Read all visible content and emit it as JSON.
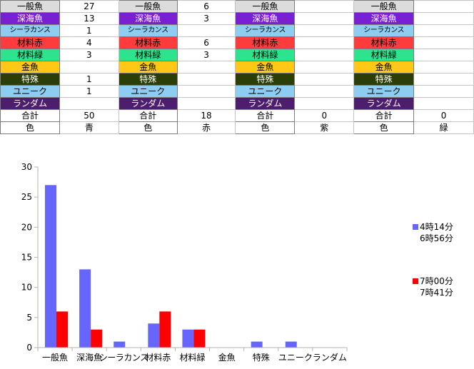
{
  "table": {
    "groups": [
      {
        "rows": [
          {
            "label": "一般魚",
            "value": "27"
          },
          {
            "label": "深海魚",
            "value": "13"
          },
          {
            "label": "シーラカンス",
            "value": "1"
          },
          {
            "label": "材料赤",
            "value": "4"
          },
          {
            "label": "材料緑",
            "value": "3"
          },
          {
            "label": "金魚",
            "value": ""
          },
          {
            "label": "特殊",
            "value": "1"
          },
          {
            "label": "ユニーク",
            "value": "1"
          },
          {
            "label": "ランダム",
            "value": ""
          },
          {
            "label": "合計",
            "value": "50"
          },
          {
            "label": "色",
            "value": "青"
          }
        ]
      },
      {
        "rows": [
          {
            "label": "一般魚",
            "value": "6"
          },
          {
            "label": "深海魚",
            "value": "3"
          },
          {
            "label": "シーラカンス",
            "value": ""
          },
          {
            "label": "材料赤",
            "value": "6"
          },
          {
            "label": "材料緑",
            "value": "3"
          },
          {
            "label": "金魚",
            "value": ""
          },
          {
            "label": "特殊",
            "value": ""
          },
          {
            "label": "ユニーク",
            "value": ""
          },
          {
            "label": "ランダム",
            "value": ""
          },
          {
            "label": "合計",
            "value": "18"
          },
          {
            "label": "色",
            "value": "赤"
          }
        ]
      },
      {
        "rows": [
          {
            "label": "一般魚",
            "value": ""
          },
          {
            "label": "深海魚",
            "value": ""
          },
          {
            "label": "シーラカンス",
            "value": ""
          },
          {
            "label": "材料赤",
            "value": ""
          },
          {
            "label": "材料緑",
            "value": ""
          },
          {
            "label": "金魚",
            "value": ""
          },
          {
            "label": "特殊",
            "value": ""
          },
          {
            "label": "ユニーク",
            "value": ""
          },
          {
            "label": "ランダム",
            "value": ""
          },
          {
            "label": "合計",
            "value": "0"
          },
          {
            "label": "色",
            "value": "紫"
          }
        ]
      },
      {
        "rows": [
          {
            "label": "一般魚",
            "value": ""
          },
          {
            "label": "深海魚",
            "value": ""
          },
          {
            "label": "シーラカンス",
            "value": ""
          },
          {
            "label": "材料赤",
            "value": ""
          },
          {
            "label": "材料緑",
            "value": ""
          },
          {
            "label": "金魚",
            "value": ""
          },
          {
            "label": "特殊",
            "value": ""
          },
          {
            "label": "ユニーク",
            "value": ""
          },
          {
            "label": "ランダム",
            "value": ""
          },
          {
            "label": "合計",
            "value": "0"
          },
          {
            "label": "色",
            "value": "緑"
          }
        ]
      }
    ],
    "row_colors": [
      {
        "bg": "#dcdcdc",
        "fg": "#000000"
      },
      {
        "bg": "#7a1fd1",
        "fg": "#ffffff"
      },
      {
        "bg": "#8ecdf2",
        "fg": "#000000"
      },
      {
        "bg": "#ff3b3b",
        "fg": "#000000"
      },
      {
        "bg": "#2ee38d",
        "fg": "#000000"
      },
      {
        "bg": "#ffc816",
        "fg": "#000000"
      },
      {
        "bg": "#2b3e06",
        "fg": "#ffffff"
      },
      {
        "bg": "#8ecdf2",
        "fg": "#000000"
      },
      {
        "bg": "#4d1e6e",
        "fg": "#ffffff"
      },
      {
        "bg": "#ffffff",
        "fg": "#000000"
      },
      {
        "bg": "#ffffff",
        "fg": "#000000"
      }
    ]
  },
  "chart_data": {
    "type": "bar",
    "categories": [
      "一般魚",
      "深海魚",
      "シーラカンス",
      "材料赤",
      "材料緑",
      "金魚",
      "特殊",
      "ユニーク",
      "ランダム"
    ],
    "series": [
      {
        "name": "4時14分\n6時56分",
        "color": "#6666ff",
        "values": [
          27,
          13,
          1,
          4,
          3,
          0,
          1,
          1,
          0
        ]
      },
      {
        "name": "7時00分\n7時41分",
        "color": "#ff0000",
        "values": [
          6,
          3,
          0,
          6,
          3,
          0,
          0,
          0,
          0
        ]
      }
    ],
    "ylim": [
      0,
      30
    ],
    "yticks": [
      0,
      5,
      10,
      15,
      20,
      25,
      30
    ],
    "grid": false,
    "legend_position": "right"
  }
}
